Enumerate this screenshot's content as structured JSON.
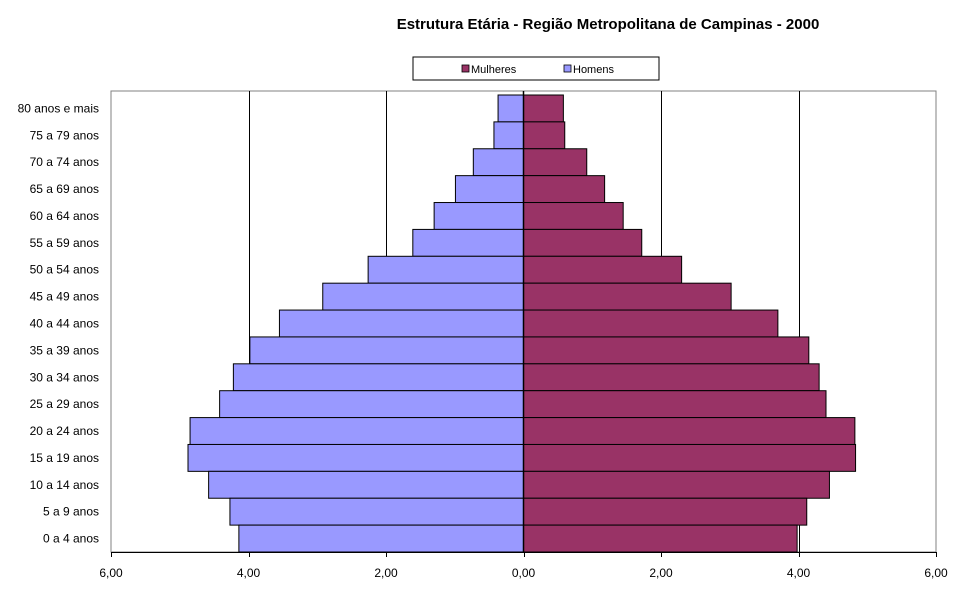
{
  "chart_data": {
    "type": "bar",
    "orientation": "horizontal",
    "title": "Estrutura Etária  -  Região Metropolitana de Campinas - 2000",
    "categories": [
      "80 anos e mais",
      "75 a 79 anos",
      "70 a 74 anos",
      "65 a 69 anos",
      "60 a 64 anos",
      "55 a 59 anos",
      "50 a 54 anos",
      "45 a 49 anos",
      "40 a 44 anos",
      "35 a 39 anos",
      "30 a 34 anos",
      "25 a 29 anos",
      "20 a 24 anos",
      "15 a 19 anos",
      "10 a 14 anos",
      "5 a 9 anos",
      "0 a 4 anos"
    ],
    "series": [
      {
        "name": "Mulheres",
        "color": "#993366",
        "values": [
          0.58,
          0.6,
          0.92,
          1.18,
          1.45,
          1.72,
          2.3,
          3.02,
          3.7,
          4.15,
          4.3,
          4.4,
          4.82,
          4.83,
          4.45,
          4.12,
          3.98
        ]
      },
      {
        "name": "Homens",
        "color": "#9999FF",
        "values": [
          0.37,
          0.43,
          0.73,
          0.99,
          1.3,
          1.61,
          2.26,
          2.92,
          3.55,
          3.98,
          4.22,
          4.42,
          4.85,
          4.88,
          4.58,
          4.27,
          4.14
        ]
      }
    ],
    "xlim": [
      -6,
      6
    ],
    "xticks": [
      -6,
      -4,
      -2,
      0,
      2,
      4,
      6
    ],
    "xtick_labels": [
      "6,00",
      "4,00",
      "2,00",
      "0,00",
      "2,00",
      "4,00",
      "6,00"
    ],
    "grid": "vertical major lines at 2,00 and 4,00",
    "legend_placement": "top-center"
  }
}
